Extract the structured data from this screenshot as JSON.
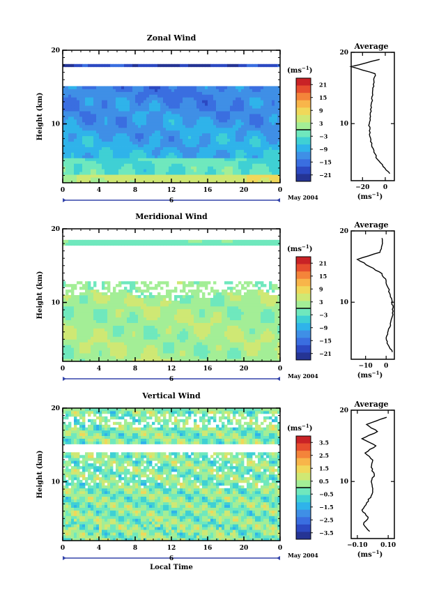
{
  "chart_data": [
    {
      "type": "heatmap",
      "title": "Zonal Wind",
      "ylabel": "Height (km)",
      "xlabel": "",
      "x_ticks": [
        "0",
        "4",
        "8",
        "12",
        "16",
        "20",
        "0"
      ],
      "y_ticks": [
        "20",
        "10"
      ],
      "xlim": [
        0,
        24
      ],
      "ylim": [
        2,
        20
      ],
      "date_marker": "6",
      "date_label": "May 2004",
      "colorbar": {
        "unit": "(ms",
        "unit_exp": "−1",
        "unit_close": ")",
        "ticks": [
          "21",
          "15",
          "9",
          "3",
          "−3",
          "−9",
          "−15",
          "−21"
        ],
        "range": [
          -24,
          24
        ],
        "zero_line": true
      },
      "profile": {
        "title": "Average",
        "x_ticks": [
          "−20",
          "0"
        ],
        "xlim": [
          -30,
          8
        ],
        "y_ticks": [
          "20",
          "10"
        ],
        "xlabel": "(ms",
        "xlabel_exp": "−1",
        "xlabel_close": ")",
        "heights": [
          3,
          4,
          5,
          6,
          7,
          8,
          9,
          10,
          11,
          12,
          13,
          14,
          15,
          16,
          17,
          18,
          19
        ],
        "values": [
          4,
          -2,
          -7,
          -10,
          -12,
          -13,
          -14,
          -14,
          -13,
          -13,
          -12,
          -11,
          -11,
          -10,
          -9,
          -30,
          -5
        ]
      }
    },
    {
      "type": "heatmap",
      "title": "Meridional Wind",
      "ylabel": "Height (km)",
      "xlabel": "",
      "x_ticks": [
        "0",
        "4",
        "8",
        "12",
        "16",
        "20",
        "0"
      ],
      "y_ticks": [
        "20",
        "10"
      ],
      "xlim": [
        0,
        24
      ],
      "ylim": [
        2,
        20
      ],
      "date_marker": "6",
      "date_label": "May 2004",
      "colorbar": {
        "unit": "(ms",
        "unit_exp": "−1",
        "unit_close": ")",
        "ticks": [
          "21",
          "15",
          "9",
          "3",
          "−3",
          "−9",
          "−15",
          "−21"
        ],
        "range": [
          -24,
          24
        ],
        "zero_line": true
      },
      "profile": {
        "title": "Average",
        "x_ticks": [
          "−10",
          "0"
        ],
        "xlim": [
          -17,
          4
        ],
        "y_ticks": [
          "20",
          "10"
        ],
        "xlabel": "(ms",
        "xlabel_exp": "−1",
        "xlabel_close": ")",
        "heights": [
          3,
          4,
          5,
          6,
          7,
          8,
          9,
          10,
          11,
          12,
          13,
          14,
          15,
          16,
          17,
          18,
          19
        ],
        "values": [
          3,
          1,
          0,
          1,
          2,
          3,
          3,
          3,
          2,
          1,
          0,
          -2,
          -8,
          -14,
          -3,
          -2,
          -2
        ]
      }
    },
    {
      "type": "heatmap",
      "title": "Vertical Wind",
      "ylabel": "Height (km)",
      "xlabel": "Local Time",
      "x_ticks": [
        "0",
        "4",
        "8",
        "12",
        "16",
        "20",
        "0"
      ],
      "y_ticks": [
        "20",
        "10"
      ],
      "xlim": [
        0,
        24
      ],
      "ylim": [
        2,
        20
      ],
      "date_marker": "6",
      "date_label": "May 2004",
      "colorbar": {
        "unit": "(ms",
        "unit_exp": "−1",
        "unit_close": ")",
        "ticks": [
          "3.5",
          "2.5",
          "1.5",
          "0.5",
          "−0.5",
          "−1.5",
          "−2.5",
          "−3.5"
        ],
        "range": [
          -4,
          4
        ],
        "zero_line": true
      },
      "profile": {
        "title": "Average",
        "x_ticks": [
          "−0.10",
          "0.10"
        ],
        "xlim": [
          -0.14,
          0.14
        ],
        "y_ticks": [
          "20",
          "10"
        ],
        "xlabel": "(ms",
        "xlabel_exp": "−1",
        "xlabel_close": ")",
        "heights": [
          3,
          4,
          5,
          6,
          7,
          8,
          9,
          10,
          11,
          12,
          13,
          14,
          15,
          16,
          17,
          18,
          19
        ],
        "values": [
          -0.02,
          -0.06,
          -0.03,
          -0.07,
          -0.04,
          -0.01,
          0.0,
          -0.01,
          0.01,
          -0.01,
          0.0,
          -0.05,
          0.02,
          -0.07,
          0.03,
          -0.04,
          0.09
        ]
      }
    }
  ]
}
